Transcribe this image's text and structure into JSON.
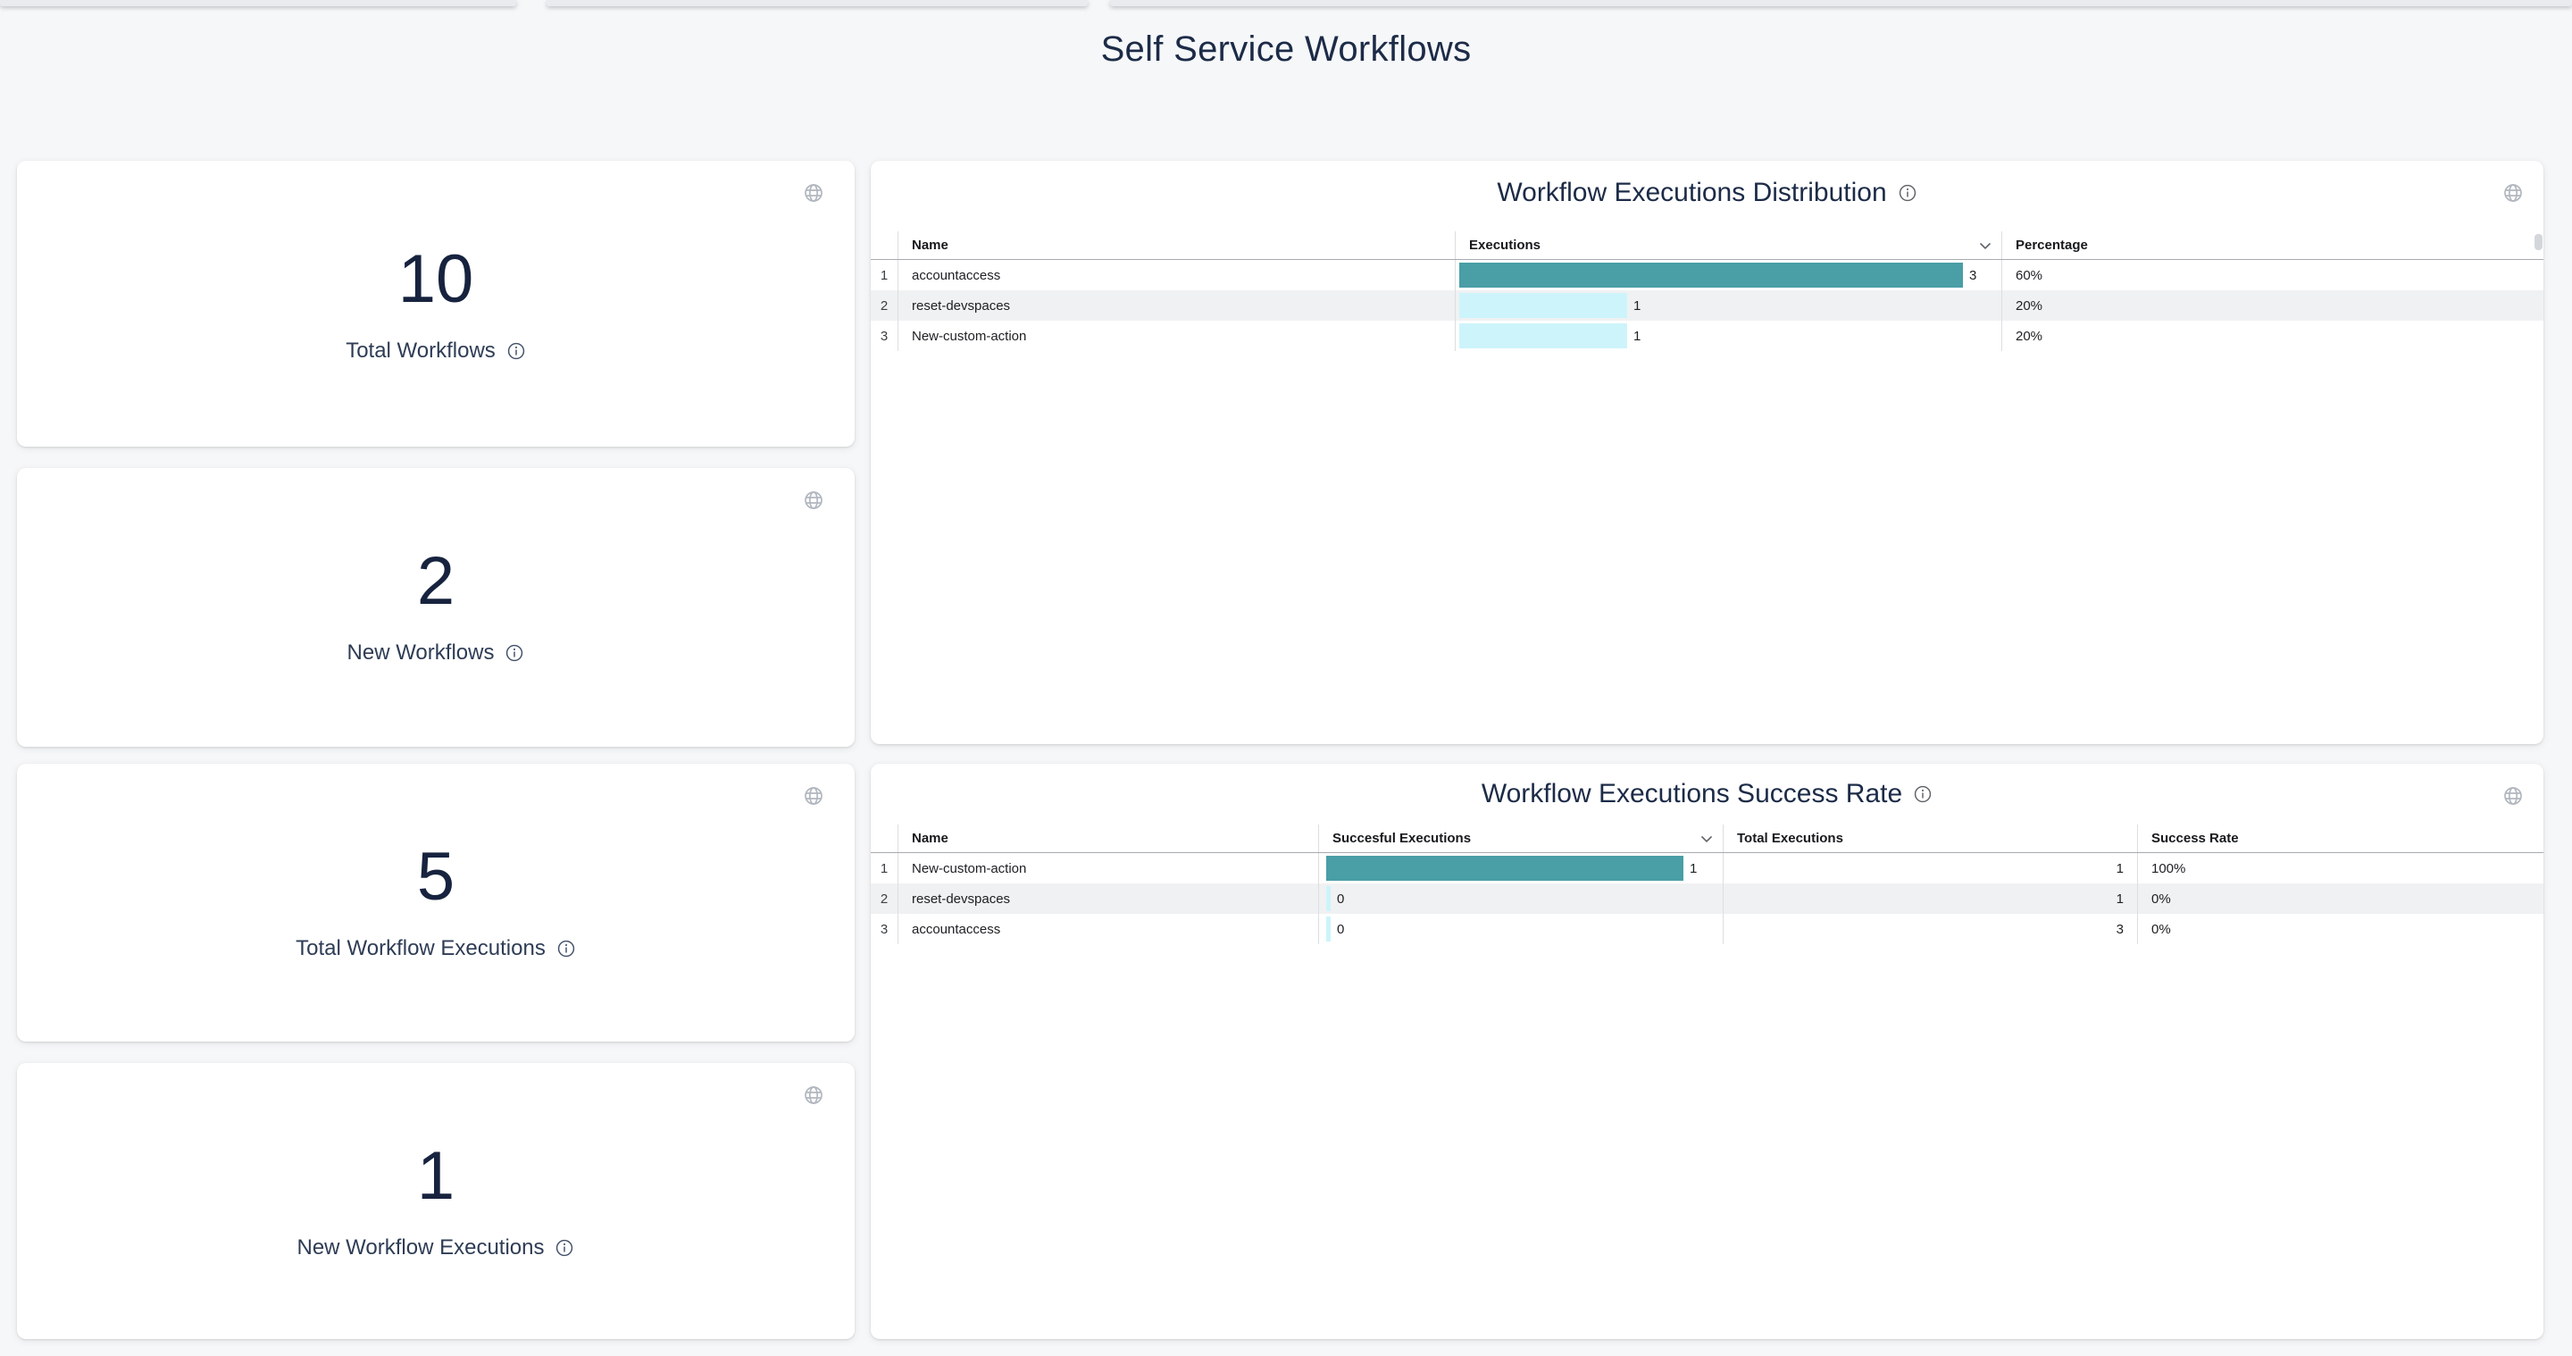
{
  "page": {
    "title": "Self Service Workflows"
  },
  "colors": {
    "page_bg": "#f6f7f9",
    "card_bg": "#ffffff",
    "heading": "#1c2b47",
    "stat_number": "#17233e",
    "bar_teal": "#4a9ea6",
    "bar_cyan": "#cdf4fb",
    "row_alt": "#f0f1f2",
    "icon_gray": "#b2b7bf"
  },
  "stat_cards": [
    {
      "value": "10",
      "label": "Total Workflows"
    },
    {
      "value": "2",
      "label": "New Workflows"
    },
    {
      "value": "5",
      "label": "Total Workflow Executions"
    },
    {
      "value": "1",
      "label": "New Workflow Executions"
    }
  ],
  "tables": [
    {
      "title": "Workflow Executions Distribution",
      "columns": {
        "name": "Name",
        "executions": "Executions",
        "percentage": "Percentage"
      },
      "sorted_column": "Executions",
      "bar_max": 3,
      "rows": [
        {
          "index": "1",
          "name": "accountaccess",
          "executions": 3,
          "percentage": "60%"
        },
        {
          "index": "2",
          "name": "reset-devspaces",
          "executions": 1,
          "percentage": "20%"
        },
        {
          "index": "3",
          "name": "New-custom-action",
          "executions": 1,
          "percentage": "20%"
        }
      ]
    },
    {
      "title": "Workflow Executions Success Rate",
      "columns": {
        "name": "Name",
        "successful": "Succesful Executions",
        "total": "Total Executions",
        "rate": "Success Rate"
      },
      "sorted_column": "Succesful Executions",
      "bar_max": 1,
      "rows": [
        {
          "index": "1",
          "name": "New-custom-action",
          "successful": 1,
          "total": 1,
          "rate": "100%"
        },
        {
          "index": "2",
          "name": "reset-devspaces",
          "successful": 0,
          "total": 1,
          "rate": "0%"
        },
        {
          "index": "3",
          "name": "accountaccess",
          "successful": 0,
          "total": 3,
          "rate": "0%"
        }
      ]
    }
  ],
  "chart_data": [
    {
      "type": "table",
      "title": "Workflow Executions Distribution",
      "columns": [
        "Name",
        "Executions",
        "Percentage"
      ],
      "rows": [
        [
          "accountaccess",
          3,
          "60%"
        ],
        [
          "reset-devspaces",
          1,
          "20%"
        ],
        [
          "New-custom-action",
          1,
          "20%"
        ]
      ],
      "bar_column": "Executions",
      "bar_range": [
        0,
        3
      ]
    },
    {
      "type": "table",
      "title": "Workflow Executions Success Rate",
      "columns": [
        "Name",
        "Succesful Executions",
        "Total Executions",
        "Success Rate"
      ],
      "rows": [
        [
          "New-custom-action",
          1,
          1,
          "100%"
        ],
        [
          "reset-devspaces",
          0,
          1,
          "0%"
        ],
        [
          "accountaccess",
          0,
          3,
          "0%"
        ]
      ],
      "bar_column": "Succesful Executions",
      "bar_range": [
        0,
        1
      ]
    }
  ]
}
